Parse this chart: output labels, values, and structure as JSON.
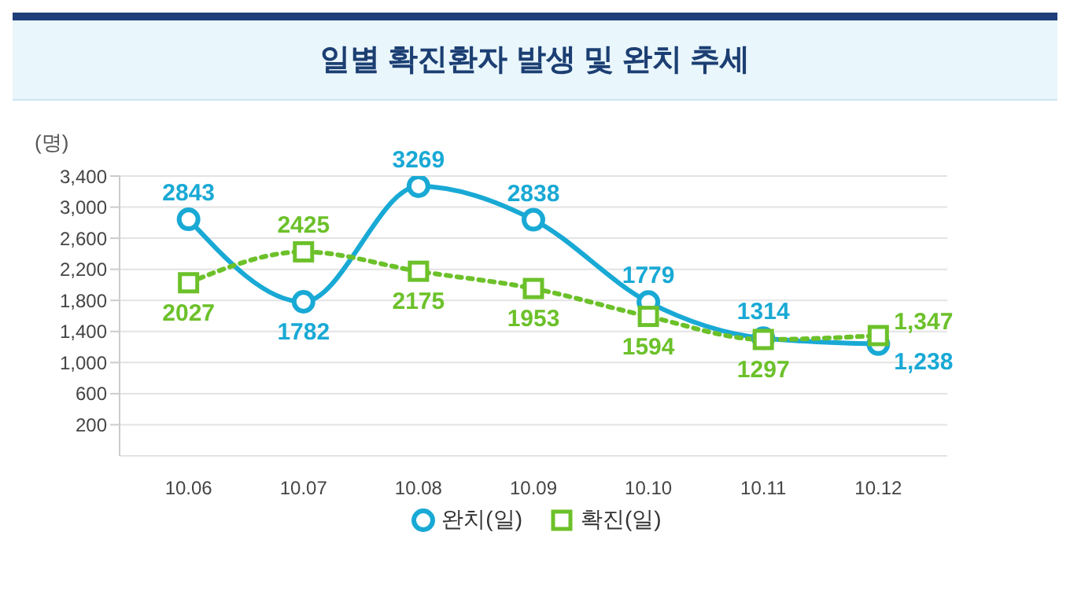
{
  "chart_data": {
    "type": "line",
    "title": "일별 확진환자 발생 및 완치 추세",
    "ylabel": "(명)",
    "categories": [
      "10.06",
      "10.07",
      "10.08",
      "10.09",
      "10.10",
      "10.11",
      "10.12"
    ],
    "series": [
      {
        "name": "완치(일)",
        "color": "#19a9d5",
        "values": [
          2843,
          1782,
          3269,
          2838,
          1779,
          1314,
          1238
        ],
        "value_labels": [
          "2843",
          "1782",
          "3269",
          "2838",
          "1779",
          "1314",
          "1,238"
        ],
        "marker": "circle",
        "line_style": "solid"
      },
      {
        "name": "확진(일)",
        "color": "#6cc12a",
        "values": [
          2027,
          2425,
          2175,
          1953,
          1594,
          1297,
          1347
        ],
        "value_labels": [
          "2027",
          "2425",
          "2175",
          "1953",
          "1594",
          "1297",
          "1,347"
        ],
        "marker": "square",
        "line_style": "dotted"
      }
    ],
    "ylim": [
      -200,
      3400
    ],
    "yticks": [
      {
        "value": 200,
        "label": "200"
      },
      {
        "value": 600,
        "label": "600"
      },
      {
        "value": 1000,
        "label": "1,000"
      },
      {
        "value": 1400,
        "label": "1,400"
      },
      {
        "value": 1800,
        "label": "1,800"
      },
      {
        "value": 2200,
        "label": "2,200"
      },
      {
        "value": 2600,
        "label": "2,600"
      },
      {
        "value": 3000,
        "label": "3,000"
      },
      {
        "value": 3400,
        "label": "3,400"
      }
    ],
    "grid": "y",
    "legend": "bottom"
  }
}
